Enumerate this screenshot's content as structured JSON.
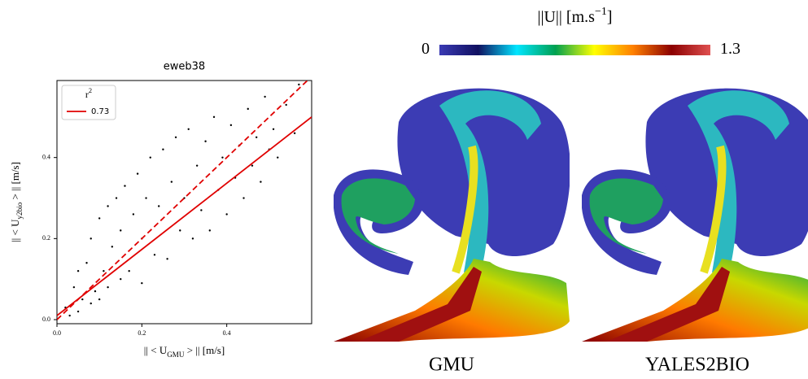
{
  "chart_data": [
    {
      "type": "scatter",
      "title": "eweb38",
      "xlabel": {
        "main": "|| < U",
        "sub": "GMU",
        "tail": " > || [m/s]"
      },
      "ylabel": {
        "main": "|| < U",
        "sub": "y2bio",
        "tail": " > || [m/s]"
      },
      "xlim": [
        0,
        0.6
      ],
      "ylim": [
        -0.01,
        0.59
      ],
      "xticks": [
        {
          "value": 0,
          "label": "0.0"
        },
        0.2,
        0.4
      ],
      "yticks": [
        {
          "value": 0,
          "label": "0.0"
        },
        0.2,
        0.4
      ],
      "point_color": "#000000",
      "x": [
        0.02,
        0.03,
        0.04,
        0.05,
        0.05,
        0.06,
        0.07,
        0.08,
        0.08,
        0.09,
        0.1,
        0.1,
        0.11,
        0.12,
        0.12,
        0.13,
        0.14,
        0.15,
        0.15,
        0.16,
        0.17,
        0.18,
        0.19,
        0.2,
        0.2,
        0.21,
        0.22,
        0.23,
        0.24,
        0.25,
        0.26,
        0.27,
        0.28,
        0.29,
        0.3,
        0.31,
        0.32,
        0.33,
        0.34,
        0.35,
        0.36,
        0.37,
        0.38,
        0.39,
        0.4,
        0.41,
        0.42,
        0.43,
        0.44,
        0.45,
        0.46,
        0.47,
        0.48,
        0.49,
        0.5,
        0.51,
        0.52,
        0.54,
        0.56,
        0.57
      ],
      "y": [
        0.03,
        0.01,
        0.08,
        0.02,
        0.12,
        0.05,
        0.14,
        0.04,
        0.2,
        0.07,
        0.25,
        0.05,
        0.12,
        0.28,
        0.08,
        0.18,
        0.3,
        0.1,
        0.22,
        0.33,
        0.12,
        0.26,
        0.36,
        0.09,
        0.2,
        0.3,
        0.4,
        0.16,
        0.28,
        0.42,
        0.15,
        0.34,
        0.45,
        0.22,
        0.3,
        0.47,
        0.2,
        0.38,
        0.27,
        0.44,
        0.22,
        0.5,
        0.32,
        0.4,
        0.26,
        0.48,
        0.35,
        0.43,
        0.3,
        0.52,
        0.38,
        0.45,
        0.34,
        0.55,
        0.42,
        0.47,
        0.4,
        0.53,
        0.46,
        0.58
      ],
      "lines": [
        {
          "name": "0.73",
          "color": "#e00000",
          "style": "solid",
          "x": [
            0,
            0.6
          ],
          "y": [
            0.01,
            0.5
          ]
        },
        {
          "color": "#e00000",
          "style": "dashed",
          "x": [
            0,
            0.59
          ],
          "y": [
            0,
            0.59
          ]
        }
      ],
      "legend_title": {
        "main": "r",
        "sup": "2"
      },
      "legend": "upper left"
    },
    {
      "type": "colorbar",
      "title": {
        "main": "||U|| [m.s",
        "sup": "−1",
        "tail": "]"
      },
      "clim": [
        0,
        1.3
      ],
      "ticks": [
        0,
        1.3
      ],
      "colormap": [
        "#3a3ab4",
        "#101060",
        "#00e5ff",
        "#00a050",
        "#ffff00",
        "#ff8000",
        "#8b0000",
        "#e05050"
      ],
      "panels": [
        "GMU",
        "YALES2BIO"
      ]
    }
  ]
}
